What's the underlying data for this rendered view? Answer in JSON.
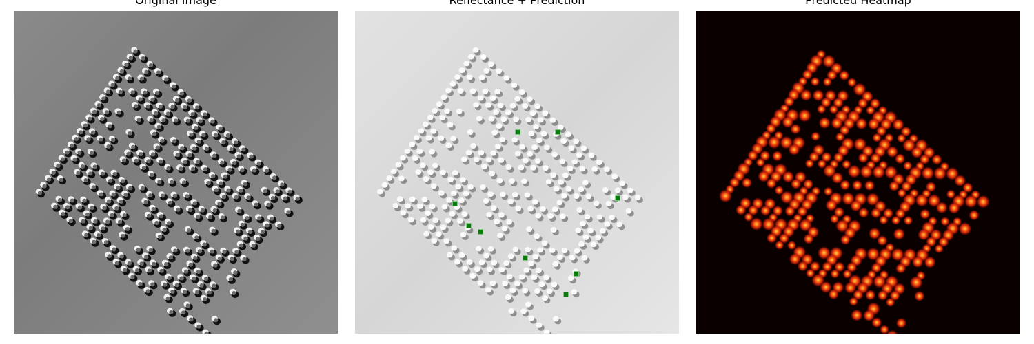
{
  "panels": [
    {
      "title": "Original Image",
      "kind": "photo"
    },
    {
      "title": "Reflectance + Prediction",
      "kind": "reflectance"
    },
    {
      "title": "Predicted Heatmap",
      "kind": "heatmap"
    }
  ],
  "colors": {
    "prediction_marker": "#0a7a0a",
    "heatmap_peak": "#ffd24a",
    "heatmap_mid": "#e0200a",
    "heatmap_background": "#0a0000"
  }
}
